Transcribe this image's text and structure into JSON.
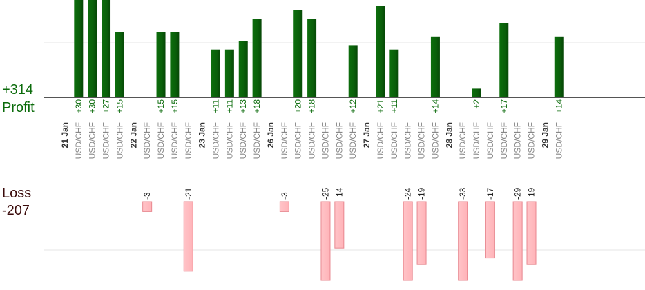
{
  "summary": {
    "profit_total": "+314",
    "profit_label": "Profit",
    "loss_label": "Loss",
    "loss_total": "-207"
  },
  "colors": {
    "profit_bar": "#0a5f0a",
    "profit_text": "#0b6b0b",
    "loss_bar": "#ffb3b8",
    "loss_border": "#e88890",
    "category_text": "#888888",
    "date_text": "#333333",
    "axis": "#555555",
    "grid": "#e6e6e6"
  },
  "chart_data": {
    "type": "bar",
    "x_groups": [
      {
        "date": "21 Jan",
        "trades": [
          {
            "pair": "USD/CHF",
            "profit": 30,
            "profit_label": "+30"
          },
          {
            "pair": "USD/CHF",
            "profit": 30,
            "profit_label": "+30"
          },
          {
            "pair": "USD/CHF",
            "profit": 27,
            "profit_label": "+27"
          },
          {
            "pair": "USD/CHF",
            "profit": 15,
            "profit_label": "+15"
          }
        ]
      },
      {
        "date": "22 Jan",
        "trades": [
          {
            "pair": "USD/CHF",
            "loss": -3,
            "loss_label": "-3"
          },
          {
            "pair": "USD/CHF",
            "profit": 15,
            "profit_label": "+15"
          },
          {
            "pair": "USD/CHF",
            "profit": 15,
            "profit_label": "+15"
          },
          {
            "pair": "USD/CHF",
            "loss": -21,
            "loss_label": "-21"
          }
        ]
      },
      {
        "date": "23 Jan",
        "trades": [
          {
            "pair": "USD/CHF",
            "profit": 11,
            "profit_label": "+11"
          },
          {
            "pair": "USD/CHF",
            "profit": 11,
            "profit_label": "+11"
          },
          {
            "pair": "USD/CHF",
            "profit": 13,
            "profit_label": "+13"
          },
          {
            "pair": "USD/CHF",
            "profit": 18,
            "profit_label": "+18"
          }
        ]
      },
      {
        "date": "26 Jan",
        "trades": [
          {
            "pair": "USD/CHF",
            "loss": -3,
            "loss_label": "-3"
          },
          {
            "pair": "USD/CHF",
            "profit": 20,
            "profit_label": "+20"
          },
          {
            "pair": "USD/CHF",
            "profit": 18,
            "profit_label": "+18"
          },
          {
            "pair": "USD/CHF",
            "loss": -25,
            "loss_label": "-25"
          },
          {
            "pair": "USD/CHF",
            "loss": -14,
            "loss_label": "-14"
          },
          {
            "pair": "USD/CHF",
            "profit": 12,
            "profit_label": "+12"
          }
        ]
      },
      {
        "date": "27 Jan",
        "trades": [
          {
            "pair": "USD/CHF",
            "profit": 21,
            "profit_label": "+21"
          },
          {
            "pair": "USD/CHF",
            "profit": 11,
            "profit_label": "+11"
          },
          {
            "pair": "USD/CHF",
            "loss": -24,
            "loss_label": "-24"
          },
          {
            "pair": "USD/CHF",
            "loss": -19,
            "loss_label": "-19"
          },
          {
            "pair": "USD/CHF",
            "profit": 14,
            "profit_label": "+14"
          }
        ]
      },
      {
        "date": "28 Jan",
        "trades": [
          {
            "pair": "USD/CHF",
            "loss": -33,
            "loss_label": "-33"
          },
          {
            "pair": "USD/CHF",
            "profit": 2,
            "profit_label": "+2"
          },
          {
            "pair": "USD/CHF",
            "loss": -17,
            "loss_label": "-17"
          },
          {
            "pair": "USD/CHF",
            "profit": 17,
            "profit_label": "+17"
          },
          {
            "pair": "USD/CHF",
            "loss": -29,
            "loss_label": "-29"
          },
          {
            "pair": "USD/CHF",
            "loss": -19,
            "loss_label": "-19"
          }
        ]
      },
      {
        "date": "29 Jan",
        "trades": [
          {
            "pair": "USD/CHF",
            "profit": 14,
            "profit_label": "+14"
          }
        ]
      }
    ],
    "profit_ylim": [
      0,
      20
    ],
    "loss_ylim": [
      -25,
      0
    ],
    "grid": true,
    "legend": "none"
  }
}
